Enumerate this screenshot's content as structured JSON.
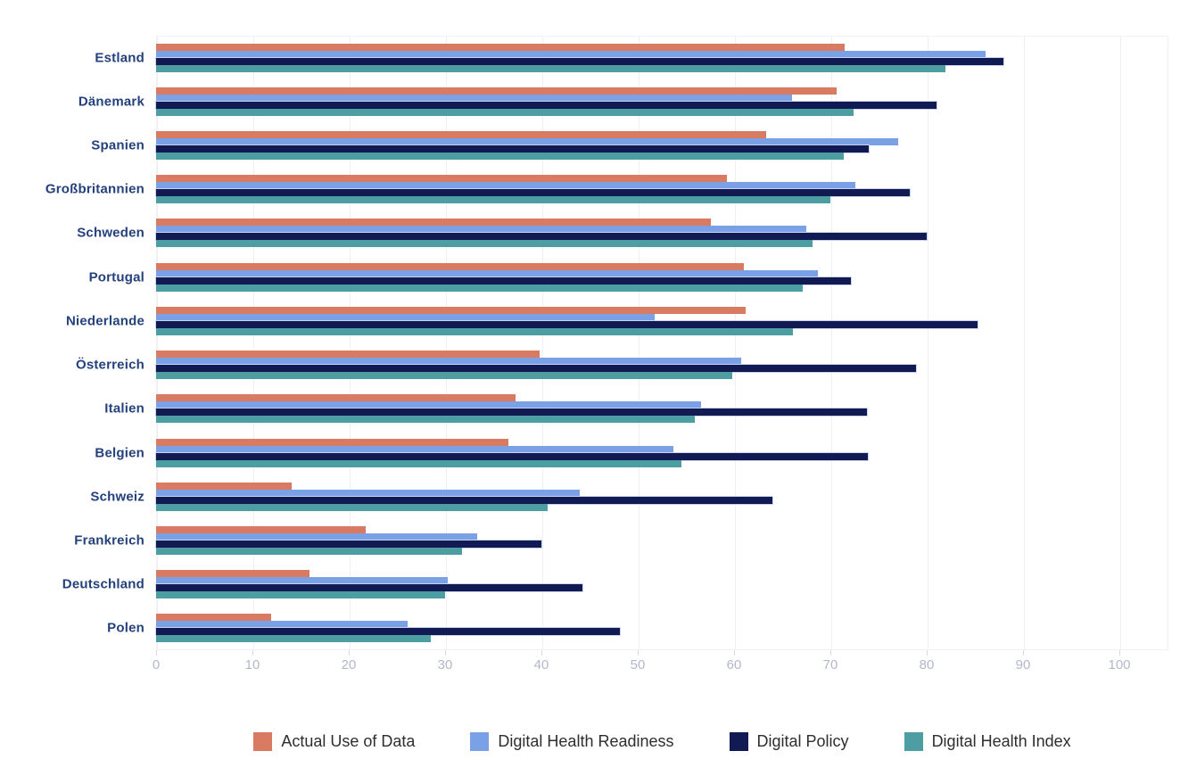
{
  "chart_data": {
    "type": "bar",
    "orientation": "horizontal",
    "title": "",
    "xlabel": "",
    "ylabel": "",
    "xlim": [
      0,
      100
    ],
    "x_ticks": [
      0,
      10,
      20,
      30,
      40,
      50,
      60,
      70,
      80,
      90,
      100
    ],
    "grid": true,
    "legend_position": "bottom",
    "categories": [
      "Estland",
      "Dänemark",
      "Spanien",
      "Großbritannien",
      "Schweden",
      "Portugal",
      "Niederlande",
      "Österreich",
      "Italien",
      "Belgien",
      "Schweiz",
      "Frankreich",
      "Deutschland",
      "Polen"
    ],
    "series": [
      {
        "name": "Actual Use of Data",
        "color": "#d87b62",
        "values": [
          71.5,
          70.6,
          63.3,
          59.3,
          57.6,
          61.0,
          61.2,
          39.8,
          37.3,
          36.6,
          14.1,
          21.8,
          15.9,
          11.9
        ]
      },
      {
        "name": "Digital Health Readiness",
        "color": "#7aa0e5",
        "values": [
          86.1,
          66.0,
          77.0,
          72.6,
          67.5,
          68.7,
          51.8,
          60.7,
          56.6,
          53.7,
          44.0,
          33.3,
          30.3,
          26.1
        ]
      },
      {
        "name": "Digital Policy",
        "color": "#121a53",
        "values": [
          88.0,
          81.0,
          74.0,
          78.2,
          80.0,
          72.1,
          85.3,
          78.9,
          73.8,
          73.9,
          64.0,
          40.0,
          44.3,
          48.1
        ]
      },
      {
        "name": "Digital Health Index",
        "color": "#4d9ea2",
        "values": [
          81.9,
          72.4,
          71.4,
          70.0,
          68.1,
          67.1,
          66.1,
          59.8,
          55.9,
          54.5,
          40.6,
          31.8,
          30.0,
          28.5
        ]
      }
    ]
  }
}
